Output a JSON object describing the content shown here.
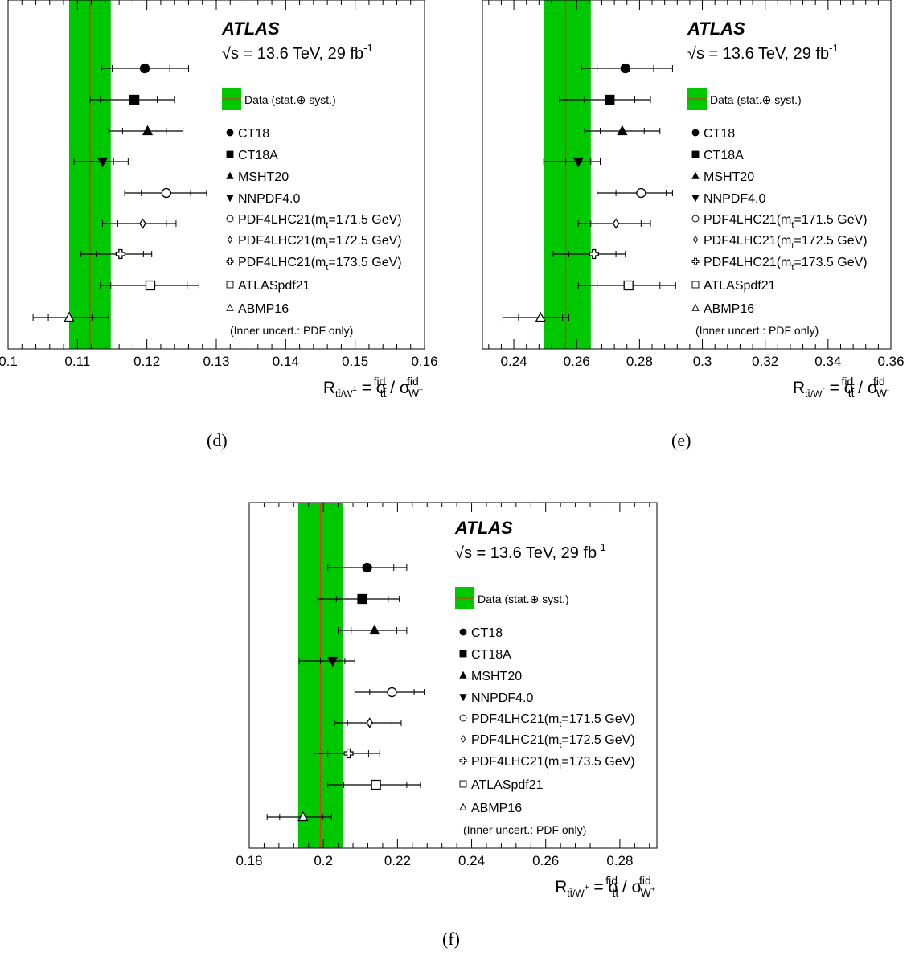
{
  "legend_common": {
    "experiment": "ATLAS",
    "energy_label": "√s = 13.6 TeV, 29 fb",
    "lumi_exponent": "-1",
    "data_label": "Data (stat.⊕ syst.)",
    "note": "(Inner uncert.: PDF only)",
    "pdf_labels": [
      "CT18",
      "CT18A",
      "MSHT20",
      "NNPDF4.0",
      "PDF4LHC21(m",
      "PDF4LHC21(m",
      "PDF4LHC21(m",
      "ATLASpdf21",
      "ABMP16"
    ],
    "pdf_mass_suffix": [
      null,
      null,
      null,
      null,
      "=171.5 GeV)",
      "=172.5 GeV)",
      "=173.5 GeV)",
      null,
      null
    ],
    "pdf_mass_subscript": "t",
    "pdf_markers": [
      "filled-circle",
      "filled-square",
      "filled-triangle-up",
      "filled-triangle-down",
      "open-circle",
      "open-diamond",
      "open-cross",
      "open-square",
      "open-triangle-up"
    ]
  },
  "colors": {
    "band": "#00c800",
    "central_line": "#d43b1e",
    "marker": "#000000"
  },
  "chart_data": [
    {
      "panel": "d",
      "caption": "(d)",
      "type": "scatter",
      "xlim": [
        0.1,
        0.16
      ],
      "xticks": [
        "0.1",
        "0.11",
        "0.12",
        "0.13",
        "0.14",
        "0.15",
        "0.16"
      ],
      "xtick_values": [
        0.1,
        0.11,
        0.12,
        0.13,
        0.14,
        0.15,
        0.16
      ],
      "xlabel": "R_tt̄/W± = σ^fid_tt̄ / σ^fid_W±",
      "xlabel_parts": {
        "r_sub": "tt̄/W",
        "r_sup": "±",
        "w_sup": "±"
      },
      "data": {
        "value": 0.1118,
        "low": 0.1088,
        "high": 0.1148
      },
      "points": [
        {
          "name": "CT18",
          "value": 0.1197,
          "pdf_low": 0.115,
          "pdf_high": 0.1233,
          "tot_low": 0.1135,
          "tot_high": 0.126
        },
        {
          "name": "CT18A",
          "value": 0.1182,
          "pdf_low": 0.1133,
          "pdf_high": 0.1215,
          "tot_low": 0.1118,
          "tot_high": 0.124
        },
        {
          "name": "MSHT20",
          "value": 0.1201,
          "pdf_low": 0.1165,
          "pdf_high": 0.1228,
          "tot_low": 0.1145,
          "tot_high": 0.1252
        },
        {
          "name": "NNPDF4.0",
          "value": 0.1136,
          "pdf_low": 0.1121,
          "pdf_high": 0.1152,
          "tot_low": 0.1095,
          "tot_high": 0.1173
        },
        {
          "name": "PDF4LHC21(mt=171.5 GeV)",
          "value": 0.1228,
          "pdf_low": 0.1192,
          "pdf_high": 0.1263,
          "tot_low": 0.1168,
          "tot_high": 0.1286
        },
        {
          "name": "PDF4LHC21(mt=172.5 GeV)",
          "value": 0.1194,
          "pdf_low": 0.1158,
          "pdf_high": 0.1228,
          "tot_low": 0.1136,
          "tot_high": 0.1242
        },
        {
          "name": "PDF4LHC21(mt=173.5 GeV)",
          "value": 0.1162,
          "pdf_low": 0.1128,
          "pdf_high": 0.1195,
          "tot_low": 0.1105,
          "tot_high": 0.1207
        },
        {
          "name": "ATLASpdf21",
          "value": 0.1205,
          "pdf_low": 0.1148,
          "pdf_high": 0.1258,
          "tot_low": 0.1133,
          "tot_high": 0.1275
        },
        {
          "name": "ABMP16",
          "value": 0.1088,
          "pdf_low": 0.1058,
          "pdf_high": 0.1122,
          "tot_low": 0.1036,
          "tot_high": 0.1145
        }
      ]
    },
    {
      "panel": "e",
      "caption": "(e)",
      "type": "scatter",
      "xlim": [
        0.23,
        0.36
      ],
      "xticks": [
        "0.24",
        "0.26",
        "0.28",
        "0.3",
        "0.32",
        "0.34",
        "0.36"
      ],
      "xtick_values": [
        0.24,
        0.26,
        0.28,
        0.3,
        0.32,
        0.34,
        0.36
      ],
      "xlabel": "R_tt̄/W− = σ^fid_tt̄ / σ^fid_W−",
      "xlabel_parts": {
        "r_sub": "tt̄/W",
        "r_sup": "-",
        "w_sup": "-"
      },
      "data": {
        "value": 0.2565,
        "low": 0.2495,
        "high": 0.2645
      },
      "points": [
        {
          "name": "CT18",
          "value": 0.2755,
          "pdf_low": 0.2665,
          "pdf_high": 0.2845,
          "tot_low": 0.2615,
          "tot_high": 0.2905
        },
        {
          "name": "CT18A",
          "value": 0.2705,
          "pdf_low": 0.2625,
          "pdf_high": 0.2785,
          "tot_low": 0.2545,
          "tot_high": 0.2835
        },
        {
          "name": "MSHT20",
          "value": 0.2745,
          "pdf_low": 0.2675,
          "pdf_high": 0.2815,
          "tot_low": 0.2625,
          "tot_high": 0.2865
        },
        {
          "name": "NNPDF4.0",
          "value": 0.2605,
          "pdf_low": 0.2565,
          "pdf_high": 0.2645,
          "tot_low": 0.2495,
          "tot_high": 0.2675
        },
        {
          "name": "PDF4LHC21(mt=171.5 GeV)",
          "value": 0.2805,
          "pdf_low": 0.2725,
          "pdf_high": 0.2885,
          "tot_low": 0.2665,
          "tot_high": 0.2905
        },
        {
          "name": "PDF4LHC21(mt=172.5 GeV)",
          "value": 0.2725,
          "pdf_low": 0.2645,
          "pdf_high": 0.2805,
          "tot_low": 0.2605,
          "tot_high": 0.2835
        },
        {
          "name": "PDF4LHC21(mt=173.5 GeV)",
          "value": 0.2655,
          "pdf_low": 0.2575,
          "pdf_high": 0.2725,
          "tot_low": 0.2525,
          "tot_high": 0.2755
        },
        {
          "name": "ATLASpdf21",
          "value": 0.2765,
          "pdf_low": 0.2665,
          "pdf_high": 0.2865,
          "tot_low": 0.2605,
          "tot_high": 0.2915
        },
        {
          "name": "ABMP16",
          "value": 0.2485,
          "pdf_low": 0.2415,
          "pdf_high": 0.2555,
          "tot_low": 0.2365,
          "tot_high": 0.2575
        }
      ]
    },
    {
      "panel": "f",
      "caption": "(f)",
      "type": "scatter",
      "xlim": [
        0.18,
        0.29
      ],
      "xticks": [
        "0.18",
        "0.2",
        "0.22",
        "0.24",
        "0.26",
        "0.28"
      ],
      "xtick_values": [
        0.18,
        0.2,
        0.22,
        0.24,
        0.26,
        0.28
      ],
      "xlabel": "R_tt̄/W+ = σ^fid_tt̄ / σ^fid_W+",
      "xlabel_parts": {
        "r_sub": "tt̄/W",
        "r_sup": "+",
        "w_sup": "+"
      },
      "data": {
        "value": 0.1992,
        "low": 0.1932,
        "high": 0.2052
      },
      "points": [
        {
          "name": "CT18",
          "value": 0.2118,
          "pdf_low": 0.2042,
          "pdf_high": 0.219,
          "tot_low": 0.2012,
          "tot_high": 0.2225
        },
        {
          "name": "CT18A",
          "value": 0.2105,
          "pdf_low": 0.2035,
          "pdf_high": 0.2175,
          "tot_low": 0.1985,
          "tot_high": 0.2205
        },
        {
          "name": "MSHT20",
          "value": 0.2138,
          "pdf_low": 0.2075,
          "pdf_high": 0.2198,
          "tot_low": 0.204,
          "tot_high": 0.2225
        },
        {
          "name": "NNPDF4.0",
          "value": 0.2025,
          "pdf_low": 0.1992,
          "pdf_high": 0.2058,
          "tot_low": 0.1935,
          "tot_high": 0.2085
        },
        {
          "name": "PDF4LHC21(mt=171.5 GeV)",
          "value": 0.2185,
          "pdf_low": 0.2125,
          "pdf_high": 0.2245,
          "tot_low": 0.2085,
          "tot_high": 0.2272
        },
        {
          "name": "PDF4LHC21(mt=172.5 GeV)",
          "value": 0.2125,
          "pdf_low": 0.2065,
          "pdf_high": 0.2185,
          "tot_low": 0.203,
          "tot_high": 0.221
        },
        {
          "name": "PDF4LHC21(mt=173.5 GeV)",
          "value": 0.2068,
          "pdf_low": 0.2012,
          "pdf_high": 0.2122,
          "tot_low": 0.1975,
          "tot_high": 0.2152
        },
        {
          "name": "ATLASpdf21",
          "value": 0.2142,
          "pdf_low": 0.2055,
          "pdf_high": 0.2225,
          "tot_low": 0.2012,
          "tot_high": 0.2262
        },
        {
          "name": "ABMP16",
          "value": 0.1945,
          "pdf_low": 0.1882,
          "pdf_high": 0.1998,
          "tot_low": 0.1848,
          "tot_high": 0.2022
        }
      ]
    }
  ]
}
